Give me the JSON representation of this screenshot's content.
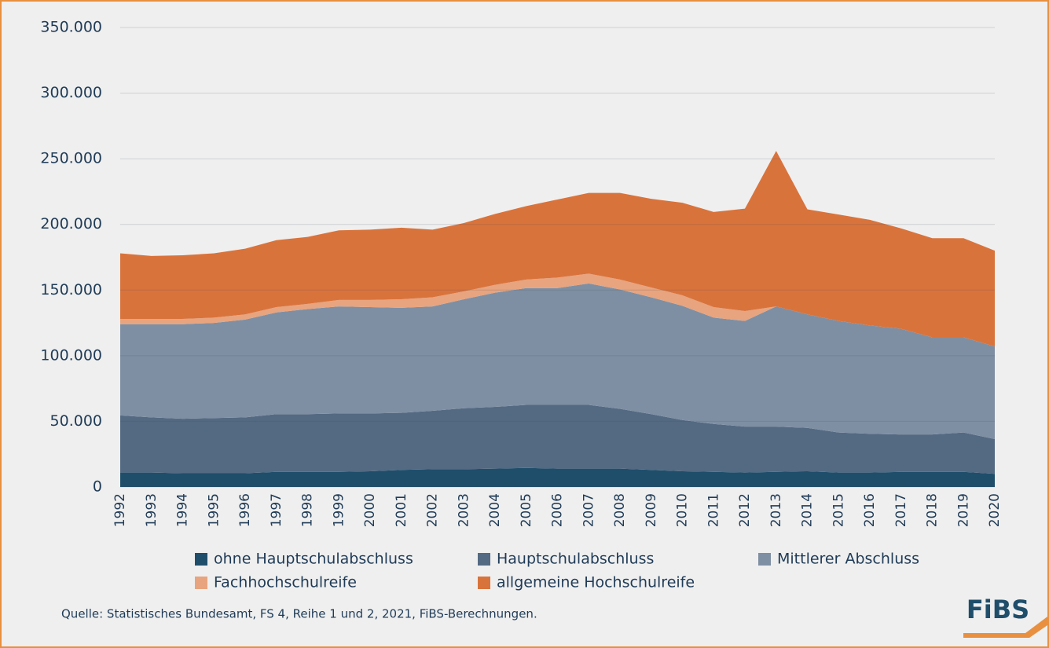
{
  "chart_data": {
    "type": "stacked_area",
    "categories": [
      "1992",
      "1993",
      "1994",
      "1995",
      "1996",
      "1997",
      "1998",
      "1999",
      "2000",
      "2001",
      "2002",
      "2003",
      "2004",
      "2005",
      "2006",
      "2007",
      "2008",
      "2009",
      "2010",
      "2011",
      "2012",
      "2013",
      "2014",
      "2015",
      "2016",
      "2017",
      "2018",
      "2019",
      "2020"
    ],
    "series": [
      {
        "name": "ohne Hauptschulabschluss",
        "color": "#1f4e6b",
        "values": [
          11000,
          11000,
          10500,
          10500,
          10500,
          11500,
          11500,
          11500,
          12000,
          13000,
          13500,
          13500,
          14000,
          14500,
          14000,
          14000,
          14000,
          13000,
          12000,
          11500,
          11000,
          11500,
          12000,
          11000,
          11000,
          11500,
          11500,
          11500,
          10000
        ]
      },
      {
        "name": "Hauptschulabschluss",
        "color": "#546a82",
        "values": [
          43500,
          42000,
          41500,
          42000,
          42500,
          44000,
          44000,
          44500,
          44000,
          43500,
          44500,
          46500,
          47000,
          48000,
          48500,
          48500,
          45500,
          42500,
          39000,
          36500,
          35000,
          34500,
          33000,
          30500,
          29500,
          28500,
          28500,
          30000,
          26500
        ]
      },
      {
        "name": "Mittlerer Abschluss",
        "color": "#7f8fa3",
        "values": [
          69500,
          71000,
          72000,
          72500,
          74500,
          77500,
          80000,
          81500,
          81000,
          80000,
          79500,
          83000,
          87000,
          89000,
          89000,
          92500,
          91000,
          89000,
          87000,
          81000,
          80500,
          91500,
          86500,
          85000,
          82500,
          80500,
          74000,
          72500,
          70500
        ]
      },
      {
        "name": "Fachhochschulreife",
        "color": "#e8a47e",
        "values": [
          4000,
          4000,
          4000,
          4000,
          4000,
          4000,
          4000,
          5000,
          5500,
          6500,
          7000,
          6000,
          6000,
          6500,
          8000,
          7500,
          7500,
          7500,
          8000,
          8000,
          7500,
          0,
          0,
          0,
          0,
          0,
          0,
          0,
          0
        ]
      },
      {
        "name": "allgemeine Hochschulreife",
        "color": "#d9733c",
        "values": [
          50000,
          48000,
          48500,
          49000,
          50000,
          51000,
          51000,
          53000,
          53500,
          54500,
          51500,
          52000,
          54000,
          56000,
          59500,
          61500,
          66000,
          67500,
          70500,
          72500,
          78000,
          118500,
          80000,
          81000,
          80500,
          76500,
          75500,
          75500,
          73000
        ]
      }
    ],
    "ylim": [
      0,
      350000
    ],
    "yticks": [
      0,
      {
        "value": 50000,
        "label": "50.000"
      },
      {
        "value": 100000,
        "label": "100.000"
      },
      {
        "value": 150000,
        "label": "150.000"
      },
      {
        "value": 200000,
        "label": "200.000"
      },
      {
        "value": 250000,
        "label": "250.000"
      },
      {
        "value": 300000,
        "label": "300.000"
      },
      {
        "value": 350000,
        "label": "350.000"
      }
    ],
    "grid": true,
    "source": "Quelle: Statistisches Bundesamt, FS 4, Reihe 1 und 2, 2021, FiBS-Berechnungen.",
    "logo": "FiBS"
  }
}
